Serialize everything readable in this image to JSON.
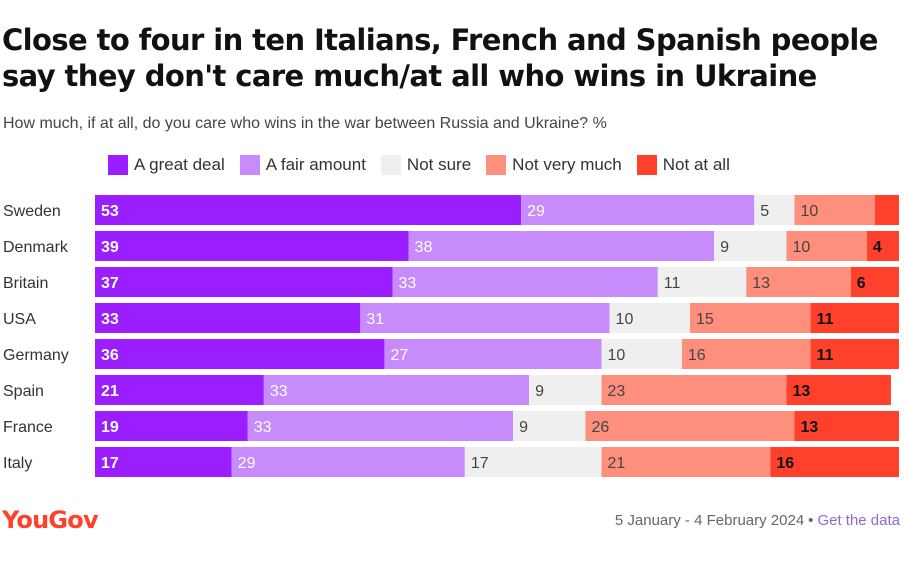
{
  "header": {
    "title": "Close to four in ten Italians, French and Spanish people say they don't care much/at all who wins in Ukraine",
    "subtitle": "How much, if at all, do you care who wins in the war between Russia and Ukraine? %"
  },
  "legend": [
    {
      "label": "A great deal",
      "color": "#9a1eff"
    },
    {
      "label": "A fair amount",
      "color": "#c78bfc"
    },
    {
      "label": "Not sure",
      "color": "#efefef"
    },
    {
      "label": "Not very much",
      "color": "#ff8f7d"
    },
    {
      "label": "Not at all",
      "color": "#ff412c"
    }
  ],
  "chart_data": {
    "type": "bar",
    "orientation": "horizontal",
    "stacked": true,
    "title": "Close to four in ten Italians, French and Spanish people say they don't care much/at all who wins in Ukraine",
    "subtitle": "How much, if at all, do you care who wins in the war between Russia and Ukraine? %",
    "xlabel": "",
    "ylabel": "",
    "xlim": [
      0,
      100
    ],
    "legend_position": "top",
    "categories": [
      "Sweden",
      "Denmark",
      "Britain",
      "USA",
      "Germany",
      "Spain",
      "France",
      "Italy"
    ],
    "series": [
      {
        "name": "A great deal",
        "color": "#9a1eff",
        "label_color": "#ffffff",
        "values": [
          53,
          39,
          37,
          33,
          36,
          21,
          19,
          17
        ]
      },
      {
        "name": "A fair amount",
        "color": "#c78bfc",
        "label_color": "#ffffff",
        "values": [
          29,
          38,
          33,
          31,
          27,
          33,
          33,
          29
        ]
      },
      {
        "name": "Not sure",
        "color": "#efefef",
        "label_color": "#444444",
        "values": [
          5,
          9,
          11,
          10,
          10,
          9,
          9,
          17
        ]
      },
      {
        "name": "Not very much",
        "color": "#ff8f7d",
        "label_color": "#444444",
        "values": [
          10,
          10,
          13,
          15,
          16,
          23,
          26,
          21
        ]
      },
      {
        "name": "Not at all",
        "color": "#ff412c",
        "label_color": "#111111",
        "values": [
          3,
          4,
          6,
          11,
          11,
          13,
          13,
          16
        ]
      }
    ],
    "data_labels": [
      [
        "53",
        "29",
        "5",
        "10",
        ""
      ],
      [
        "39",
        "38",
        "9",
        "10",
        "4"
      ],
      [
        "37",
        "33",
        "11",
        "13",
        "6"
      ],
      [
        "33",
        "31",
        "10",
        "15",
        "11"
      ],
      [
        "36",
        "27",
        "10",
        "16",
        "11"
      ],
      [
        "21",
        "33",
        "9",
        "23",
        "13"
      ],
      [
        "19",
        "33",
        "9",
        "26",
        "13"
      ],
      [
        "17",
        "29",
        "17",
        "21",
        "16"
      ]
    ]
  },
  "footer": {
    "brand": "YouGov",
    "dates": "5 January - 4 February 2024",
    "separator": "•",
    "link": "Get the data"
  }
}
